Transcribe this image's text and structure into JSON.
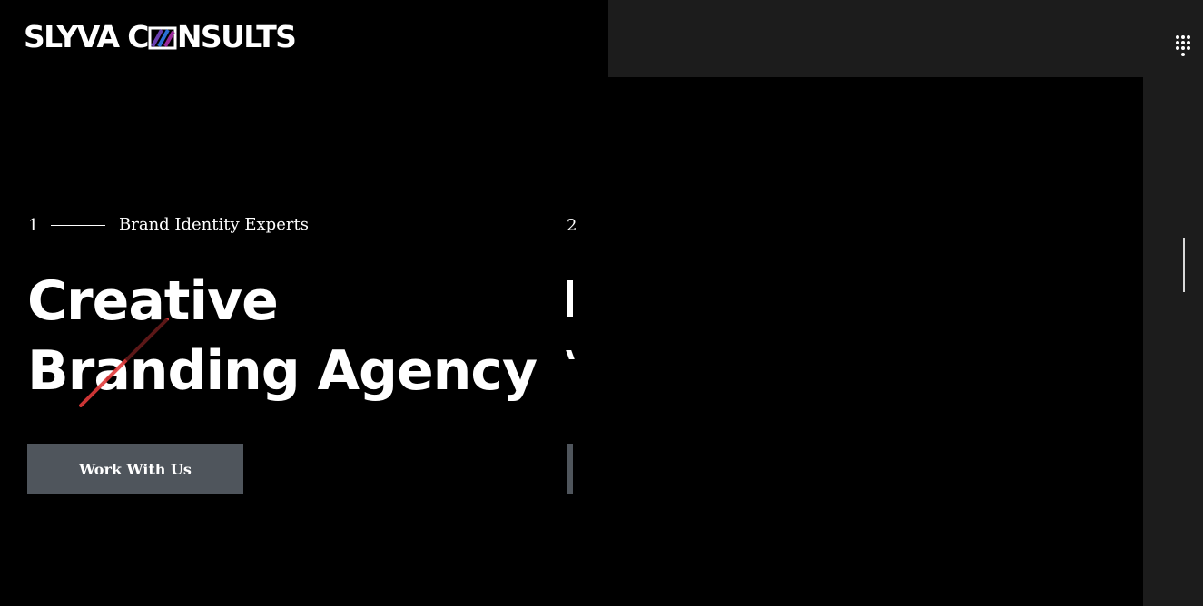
{
  "brand": {
    "logo_text_before": "SLYVA C",
    "logo_text_after": "NSULTS",
    "logo_mark_icon": "striped-o-logo-mark",
    "accent_colors": [
      "#6a3fb0",
      "#2a6fd6",
      "#9a2a9a"
    ]
  },
  "header": {
    "menu_icon": "dots-grid-menu-icon"
  },
  "hero": {
    "slide_number": "1",
    "kicker": "Brand Identity Experts",
    "title_line1": "Creative",
    "title_line2": "Branding Agency",
    "cta_label": "Work With Us",
    "accent_color": "#e23b3b"
  },
  "next_slide": {
    "slide_number": "2"
  },
  "colors": {
    "background": "#000000",
    "panel": "#1c1c1c",
    "button": "#4f555c",
    "text": "#ffffff"
  }
}
